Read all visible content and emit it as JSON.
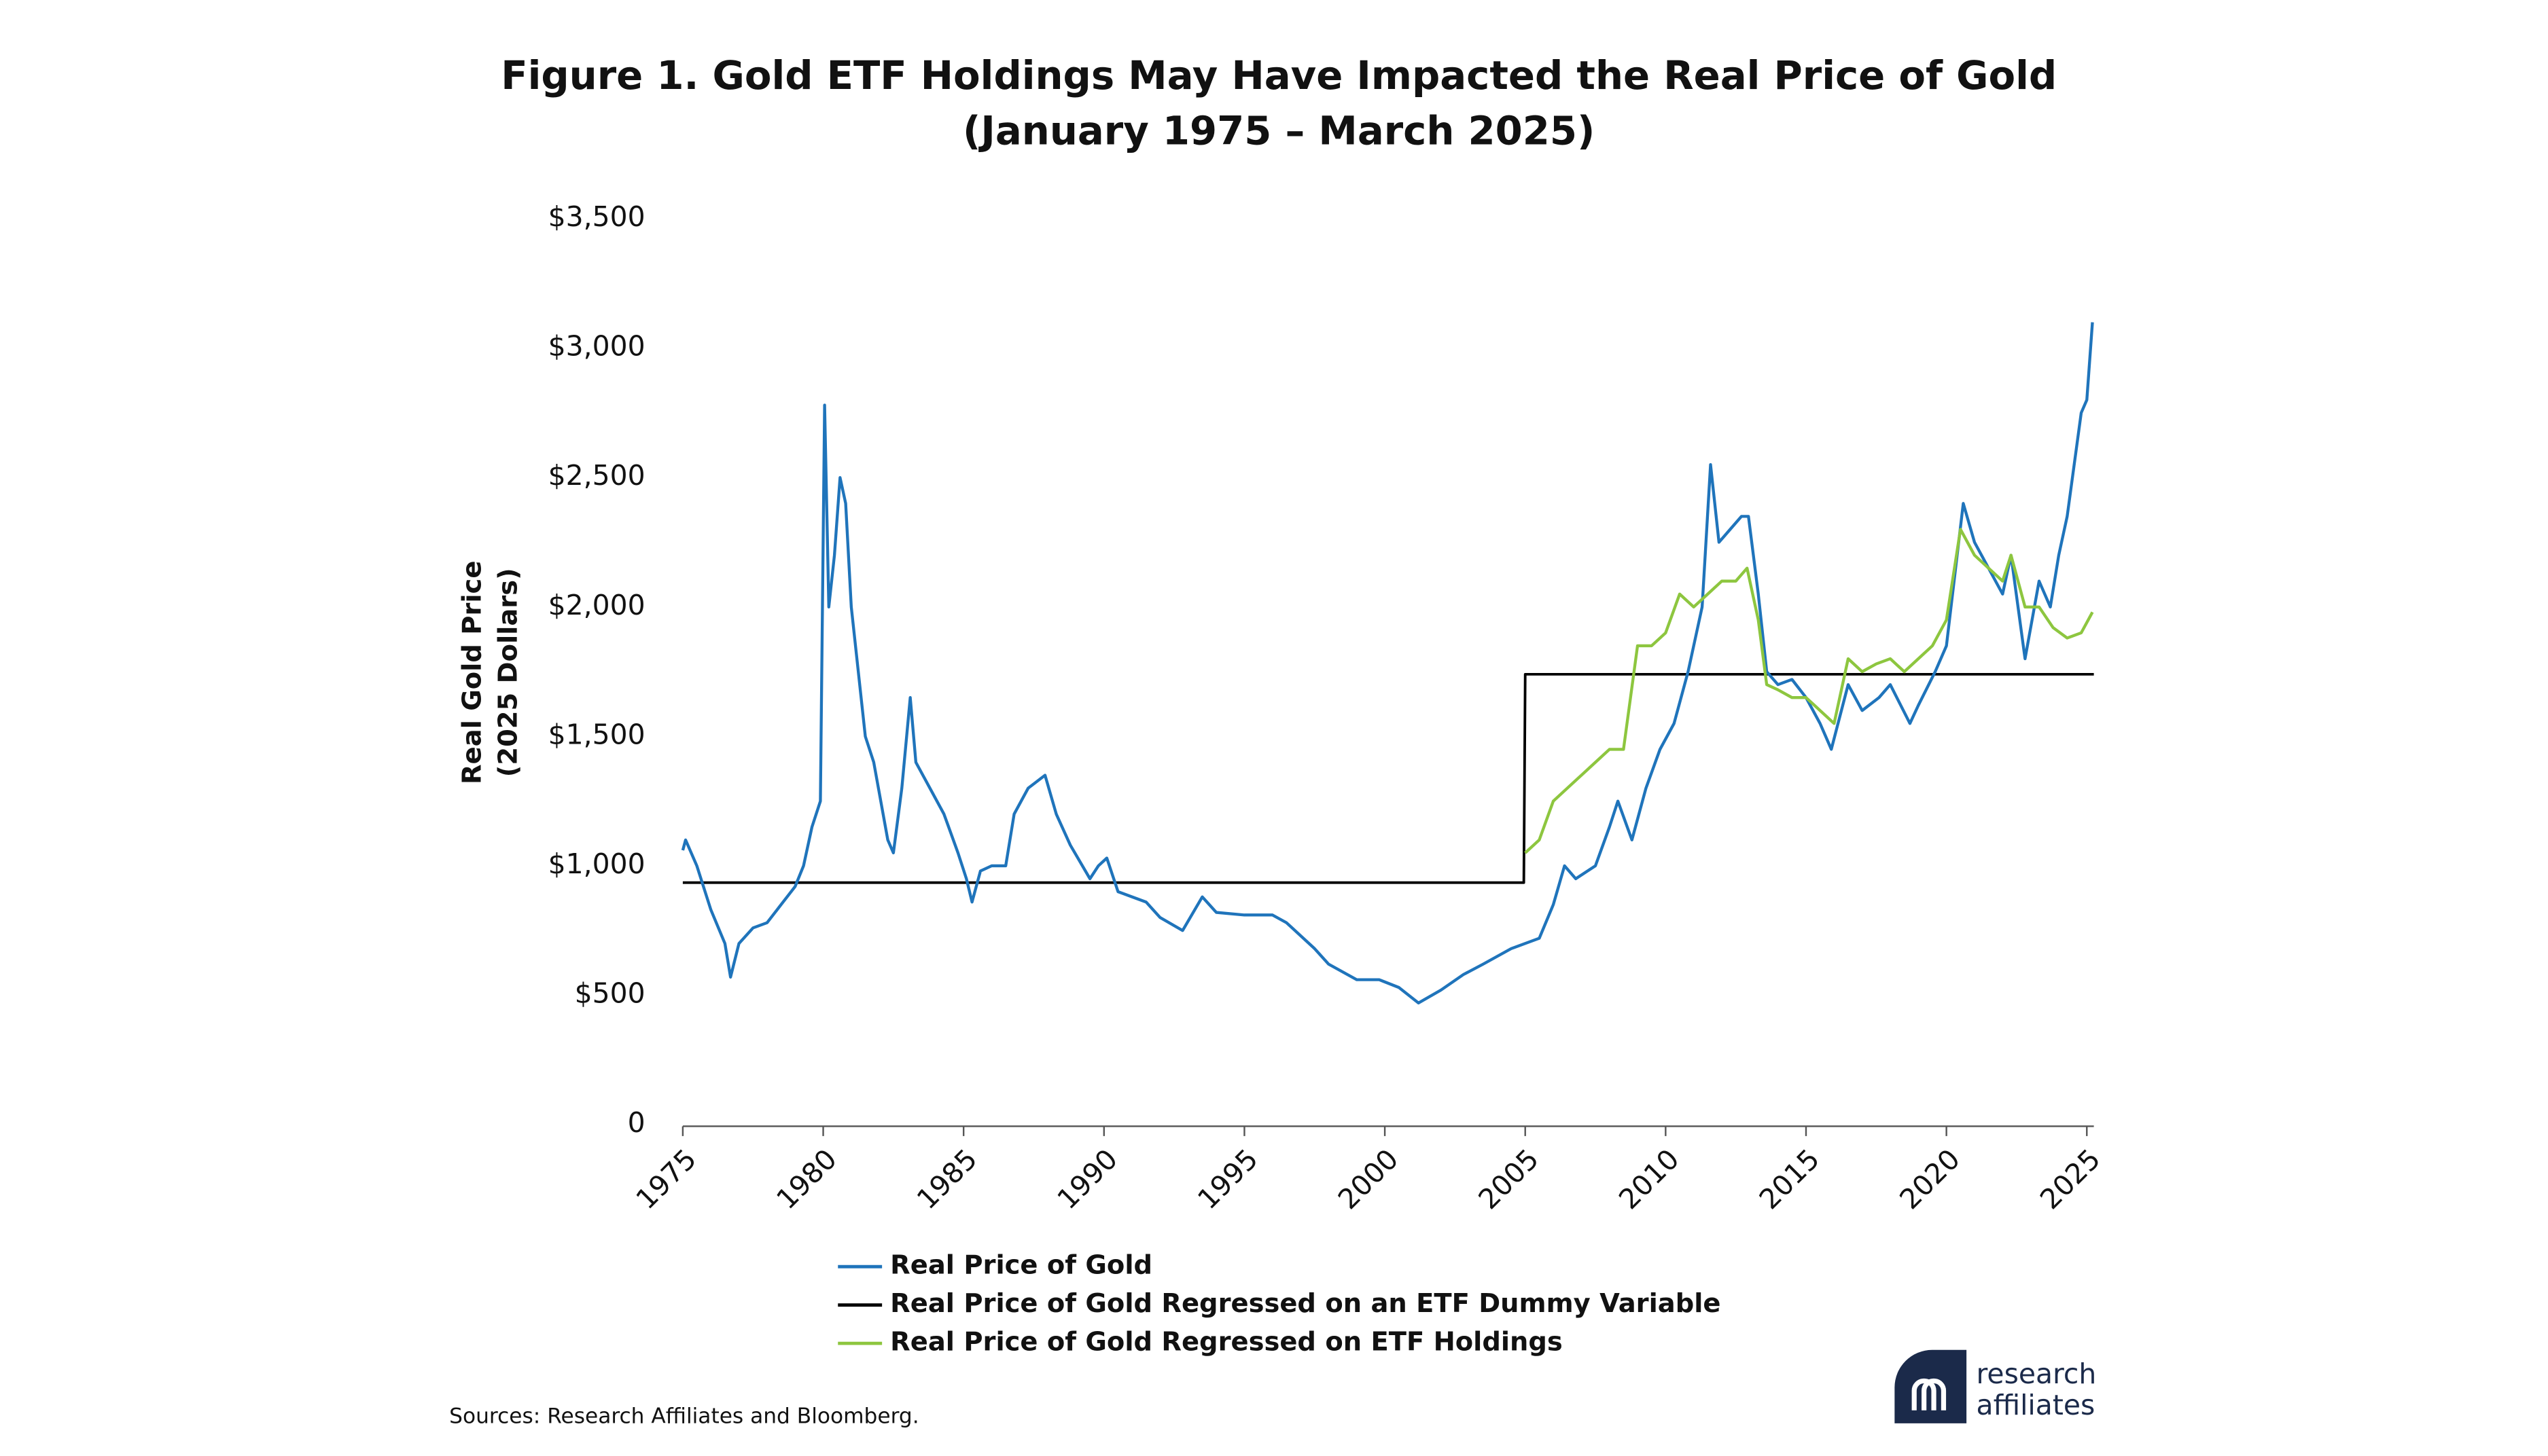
{
  "chart_data": {
    "type": "line",
    "title": [
      "Figure 1. Gold ETF Holdings May Have Impacted the Real Price of Gold",
      "(January 1975 – March 2025)"
    ],
    "y_label": [
      "Real Gold Price",
      "(2025 Dollars)"
    ],
    "source": "Sources: Research Affiliates and Bloomberg.",
    "logo": [
      "research",
      "affiliates"
    ],
    "xlim": [
      1975,
      2025.25
    ],
    "xticks": [
      1975,
      1980,
      1985,
      1990,
      1995,
      2000,
      2005,
      2010,
      2015,
      2020,
      2025
    ],
    "ylim": [
      0,
      3500
    ],
    "yticks": [
      0,
      {
        "value": 500,
        "label": "$500"
      },
      {
        "value": 1000,
        "label": "$1,000"
      },
      {
        "value": 1500,
        "label": "$1,500"
      },
      {
        "value": 2000,
        "label": "$2,000"
      },
      {
        "value": 2500,
        "label": "$2,500"
      },
      {
        "value": 3000,
        "label": "$3,000"
      },
      {
        "value": 3500,
        "label": "$3,500"
      }
    ],
    "grid": false,
    "series": [
      {
        "name": "Real Price of Gold",
        "color": "#1f74bb",
        "x": [
          1975.0,
          1975.1,
          1975.5,
          1976.0,
          1976.5,
          1976.7,
          1977.0,
          1977.5,
          1978.0,
          1978.5,
          1979.0,
          1979.3,
          1979.6,
          1979.9,
          1980.05,
          1980.2,
          1980.4,
          1980.6,
          1980.8,
          1981.0,
          1981.2,
          1981.5,
          1981.8,
          1982.3,
          1982.5,
          1982.8,
          1983.1,
          1983.3,
          1983.8,
          1984.3,
          1984.8,
          1985.1,
          1985.3,
          1985.6,
          1986.0,
          1986.5,
          1986.8,
          1987.3,
          1987.9,
          1988.3,
          1988.8,
          1989.5,
          1989.8,
          1990.1,
          1990.5,
          1991.0,
          1991.5,
          1992.0,
          1992.8,
          1993.5,
          1994.0,
          1995.0,
          1996.0,
          1996.5,
          1997.5,
          1998.0,
          1999.0,
          1999.8,
          2000.5,
          2001.2,
          2002.0,
          2002.8,
          2003.5,
          2004.5,
          2005.0,
          2005.5,
          2006.0,
          2006.4,
          2006.8,
          2007.5,
          2008.0,
          2008.3,
          2008.8,
          2009.3,
          2009.8,
          2010.3,
          2010.8,
          2011.3,
          2011.6,
          2011.9,
          2012.3,
          2012.7,
          2012.95,
          2013.3,
          2013.6,
          2014.0,
          2014.5,
          2015.0,
          2015.5,
          2015.9,
          2016.5,
          2017.0,
          2017.6,
          2018.0,
          2018.7,
          2019.0,
          2019.6,
          2020.0,
          2020.6,
          2021.0,
          2021.5,
          2022.0,
          2022.3,
          2022.8,
          2023.3,
          2023.7,
          2024.0,
          2024.3,
          2024.8,
          2025.0,
          2025.2
        ],
        "values": [
          1060,
          1100,
          1000,
          830,
          700,
          570,
          700,
          760,
          780,
          850,
          920,
          1000,
          1150,
          1250,
          2780,
          2000,
          2200,
          2500,
          2400,
          2000,
          1800,
          1500,
          1400,
          1100,
          1050,
          1300,
          1650,
          1400,
          1300,
          1200,
          1050,
          950,
          860,
          980,
          1000,
          1000,
          1200,
          1300,
          1350,
          1200,
          1080,
          950,
          1000,
          1030,
          900,
          880,
          860,
          800,
          750,
          880,
          820,
          810,
          810,
          780,
          680,
          620,
          560,
          560,
          530,
          470,
          520,
          580,
          620,
          680,
          700,
          720,
          850,
          1000,
          950,
          1000,
          1150,
          1250,
          1100,
          1300,
          1450,
          1550,
          1750,
          2000,
          2550,
          2250,
          2300,
          2350,
          2350,
          2050,
          1750,
          1700,
          1720,
          1650,
          1550,
          1450,
          1700,
          1600,
          1650,
          1700,
          1550,
          1620,
          1750,
          1850,
          2400,
          2250,
          2150,
          2050,
          2200,
          1800,
          2100,
          2000,
          2200,
          2350,
          2750,
          2800,
          3100
        ]
      },
      {
        "name": "Real Price of Gold Regressed on an ETF Dummy Variable",
        "color": "#000000",
        "x": [
          1975,
          2004.95,
          2005,
          2025.25
        ],
        "values": [
          935,
          935,
          1740,
          1740
        ]
      },
      {
        "name": "Real Price of Gold Regressed on ETF Holdings",
        "color": "#8dc63f",
        "x": [
          2005.0,
          2005.5,
          2006.0,
          2006.5,
          2007.0,
          2007.5,
          2008.0,
          2008.5,
          2009.0,
          2009.5,
          2010.0,
          2010.5,
          2011.0,
          2011.5,
          2012.0,
          2012.5,
          2012.9,
          2013.3,
          2013.6,
          2014.0,
          2014.5,
          2015.0,
          2015.5,
          2016.0,
          2016.5,
          2017.0,
          2017.5,
          2018.0,
          2018.5,
          2019.0,
          2019.5,
          2020.0,
          2020.5,
          2021.0,
          2021.5,
          2022.0,
          2022.3,
          2022.8,
          2023.3,
          2023.8,
          2024.3,
          2024.8,
          2025.2
        ],
        "values": [
          1050,
          1100,
          1250,
          1300,
          1350,
          1400,
          1450,
          1450,
          1850,
          1850,
          1900,
          2050,
          2000,
          2050,
          2100,
          2100,
          2150,
          1950,
          1700,
          1680,
          1650,
          1650,
          1600,
          1550,
          1800,
          1750,
          1780,
          1800,
          1750,
          1800,
          1850,
          1950,
          2300,
          2200,
          2150,
          2100,
          2200,
          2000,
          2000,
          1920,
          1880,
          1900,
          1980
        ]
      }
    ]
  }
}
